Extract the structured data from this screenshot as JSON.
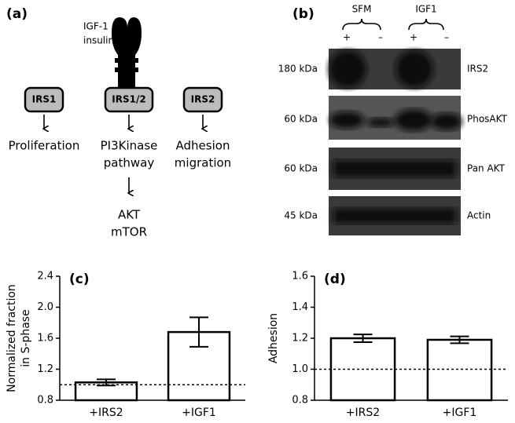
{
  "panel_a": {
    "label": "(a)",
    "ligand": [
      "IGF-1",
      "insulin"
    ],
    "nodes": [
      "IRS1",
      "IRS1/2",
      "IRS2"
    ],
    "outcomes": [
      [
        "Proliferation"
      ],
      [
        "PI3Kinase",
        "pathway"
      ],
      [
        "Adhesion",
        "migration"
      ]
    ],
    "downstream": [
      "AKT",
      "mTOR"
    ]
  },
  "panel_b": {
    "label": "(b)",
    "groups": [
      "SFM",
      "IGF1"
    ],
    "signs": [
      "+",
      "–",
      "+",
      "–"
    ],
    "rows": [
      {
        "size": "180 kDa",
        "protein": "IRS2"
      },
      {
        "size": "60 kDa",
        "protein": "PhosAKT"
      },
      {
        "size": "60 kDa",
        "protein": "Pan AKT"
      },
      {
        "size": "45 kDa",
        "protein": "Actin"
      }
    ]
  },
  "chart_data": [
    {
      "type": "bar",
      "panel_label": "(c)",
      "ylabel": [
        "Normalized fraction",
        "in S-phase"
      ],
      "categories": [
        "+IRS2",
        "+IGF1"
      ],
      "values": [
        1.03,
        1.68
      ],
      "errors": [
        0.04,
        0.19
      ],
      "color": "#ffffff",
      "ylim": [
        0.8,
        2.4
      ],
      "yticks": [
        0.8,
        1.2,
        1.6,
        {
          "value": 2,
          "label": "2.0"
        },
        2.4
      ],
      "reference_line": 1
    },
    {
      "type": "bar",
      "panel_label": "(d)",
      "ylabel": [
        "Adhesion"
      ],
      "categories": [
        "+IRS2",
        "+IGF1"
      ],
      "values": [
        1.2,
        1.19
      ],
      "errors": [
        0.025,
        0.022
      ],
      "color": "#ffffff",
      "ylim": [
        0.8,
        1.6
      ],
      "yticks": [
        0.8,
        {
          "value": 1,
          "label": "1.0"
        },
        1.2,
        1.4,
        1.6
      ],
      "reference_line": 1
    }
  ]
}
